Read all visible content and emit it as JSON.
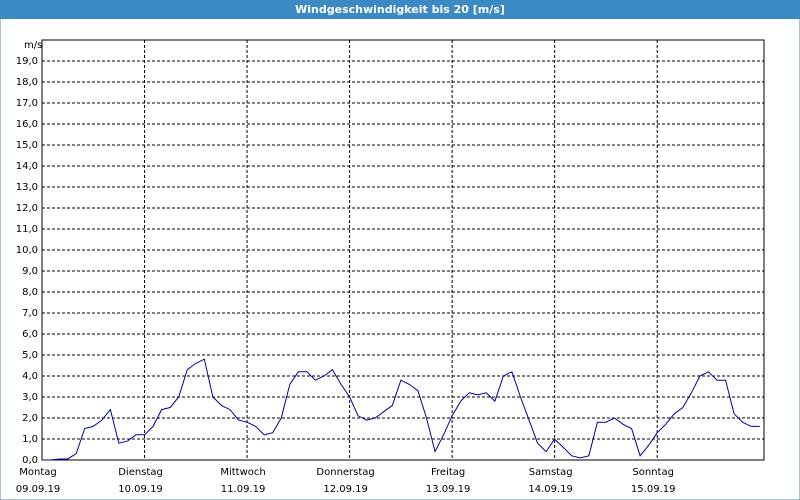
{
  "chart_data": {
    "type": "line",
    "title": "Windgeschwindigkeit bis 20 [m/s]",
    "y_unit": "m/s",
    "x": [
      0,
      2,
      4,
      6,
      8,
      10,
      12,
      14,
      16,
      18,
      20,
      22,
      24,
      26,
      28,
      30,
      32,
      34,
      36,
      38,
      40,
      42,
      44,
      46,
      48,
      50,
      52,
      54,
      56,
      58,
      60,
      62,
      64,
      66,
      68,
      70,
      72,
      74,
      76,
      78,
      80,
      82,
      84,
      86,
      88,
      90,
      92,
      94,
      96,
      98,
      100,
      102,
      104,
      106,
      108,
      110,
      112,
      114,
      116,
      118,
      120,
      122,
      124,
      126,
      128,
      130,
      132,
      134,
      136,
      138,
      140,
      142,
      144,
      146,
      148,
      150,
      152,
      154,
      156,
      158,
      160,
      162,
      164,
      166,
      168
    ],
    "series": [
      {
        "name": "Windgeschwindigkeit",
        "color": "#0000a0",
        "values": [
          0.0,
          0.0,
          0.05,
          0.05,
          0.3,
          1.5,
          1.6,
          1.9,
          2.4,
          0.8,
          0.9,
          1.2,
          1.2,
          1.6,
          2.4,
          2.5,
          3.0,
          4.3,
          4.6,
          4.8,
          3.0,
          2.6,
          2.4,
          1.9,
          1.8,
          1.6,
          1.2,
          1.3,
          2.0,
          3.6,
          4.2,
          4.2,
          3.8,
          4.0,
          4.3,
          3.6,
          3.0,
          2.1,
          1.9,
          2.0,
          2.3,
          2.6,
          3.8,
          3.6,
          3.3,
          2.0,
          0.4,
          1.2,
          2.1,
          2.8,
          3.2,
          3.1,
          3.2,
          2.8,
          4.0,
          4.2,
          3.0,
          1.9,
          0.8,
          0.4,
          1.0,
          0.6,
          0.2,
          0.1,
          0.2,
          1.8,
          1.8,
          2.0,
          1.7,
          1.5,
          0.2,
          0.7,
          1.3,
          1.7,
          2.2,
          2.5,
          3.2,
          4.0,
          4.2,
          3.8,
          3.8,
          2.2,
          1.8,
          1.6,
          1.6
        ]
      }
    ],
    "xlim": [
      0,
      169
    ],
    "xticks": [
      {
        "value": 0,
        "label": "Montag"
      },
      {
        "value": 24,
        "label": "Dienstag"
      },
      {
        "value": 48,
        "label": "Mittwoch"
      },
      {
        "value": 72,
        "label": "Donnerstag"
      },
      {
        "value": 96,
        "label": "Freitag"
      },
      {
        "value": 120,
        "label": "Samstag"
      },
      {
        "value": 144,
        "label": "Sonntag"
      }
    ],
    "xtick_dates": [
      "09.09.19",
      "10.09.19",
      "11.09.19",
      "12.09.19",
      "13.09.19",
      "14.09.19",
      "15.09.19"
    ],
    "ylim": [
      0,
      20
    ],
    "yticks": [
      {
        "value": 0,
        "label": "0,0"
      },
      {
        "value": 1,
        "label": "1,0"
      },
      {
        "value": 2,
        "label": "2,0"
      },
      {
        "value": 3,
        "label": "3,0"
      },
      {
        "value": 4,
        "label": "4,0"
      },
      {
        "value": 5,
        "label": "5,0"
      },
      {
        "value": 6,
        "label": "6,0"
      },
      {
        "value": 7,
        "label": "7,0"
      },
      {
        "value": 8,
        "label": "8,0"
      },
      {
        "value": 9,
        "label": "9,0"
      },
      {
        "value": 10,
        "label": "10,0"
      },
      {
        "value": 11,
        "label": "11,0"
      },
      {
        "value": 12,
        "label": "12,0"
      },
      {
        "value": 13,
        "label": "13,0"
      },
      {
        "value": 14,
        "label": "14,0"
      },
      {
        "value": 15,
        "label": "15,0"
      },
      {
        "value": 16,
        "label": "16,0"
      },
      {
        "value": 17,
        "label": "17,0"
      },
      {
        "value": 18,
        "label": "18,0"
      },
      {
        "value": 19,
        "label": "19,0"
      }
    ],
    "grid": true
  }
}
